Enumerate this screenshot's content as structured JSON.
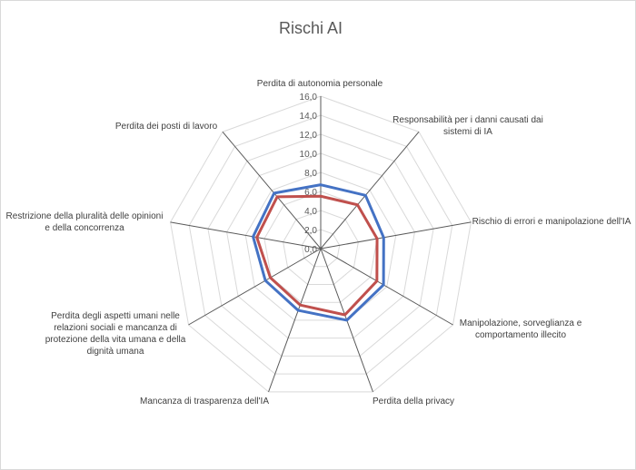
{
  "chart_data": {
    "type": "radar",
    "title": "Rischi AI",
    "categories": [
      "Perdita di autonomia personale",
      "Responsabilità per i danni causati dai sistemi di IA",
      "Rischio di errori e manipolazione dell'IA",
      "Manipolazione, sorveglianza e comportamento illecito",
      "Perdita della privacy",
      "Mancanza di trasparenza dell'IA",
      "Perdita degli aspetti umani nelle relazioni sociali e mancanza di protezione della vita umana e della dignità umana",
      "Restrizione della pluralità delle opinioni e della concorrenza",
      "Perdita dei posti di lavoro"
    ],
    "ticks": [
      "0,0",
      "2,0",
      "4,0",
      "6,0",
      "8,0",
      "10,0",
      "12,0",
      "14,0",
      "16,0"
    ],
    "rmax": 16,
    "grid": true,
    "series": [
      {
        "values": [
          6.7,
          7.3,
          6.7,
          7.6,
          8.0,
          6.9,
          6.7,
          7.2,
          7.6
        ],
        "color": "#4472c4"
      },
      {
        "values": [
          5.5,
          6.0,
          6.0,
          6.8,
          7.4,
          6.3,
          6.1,
          6.8,
          7.1
        ],
        "color": "#c0504d"
      }
    ]
  }
}
